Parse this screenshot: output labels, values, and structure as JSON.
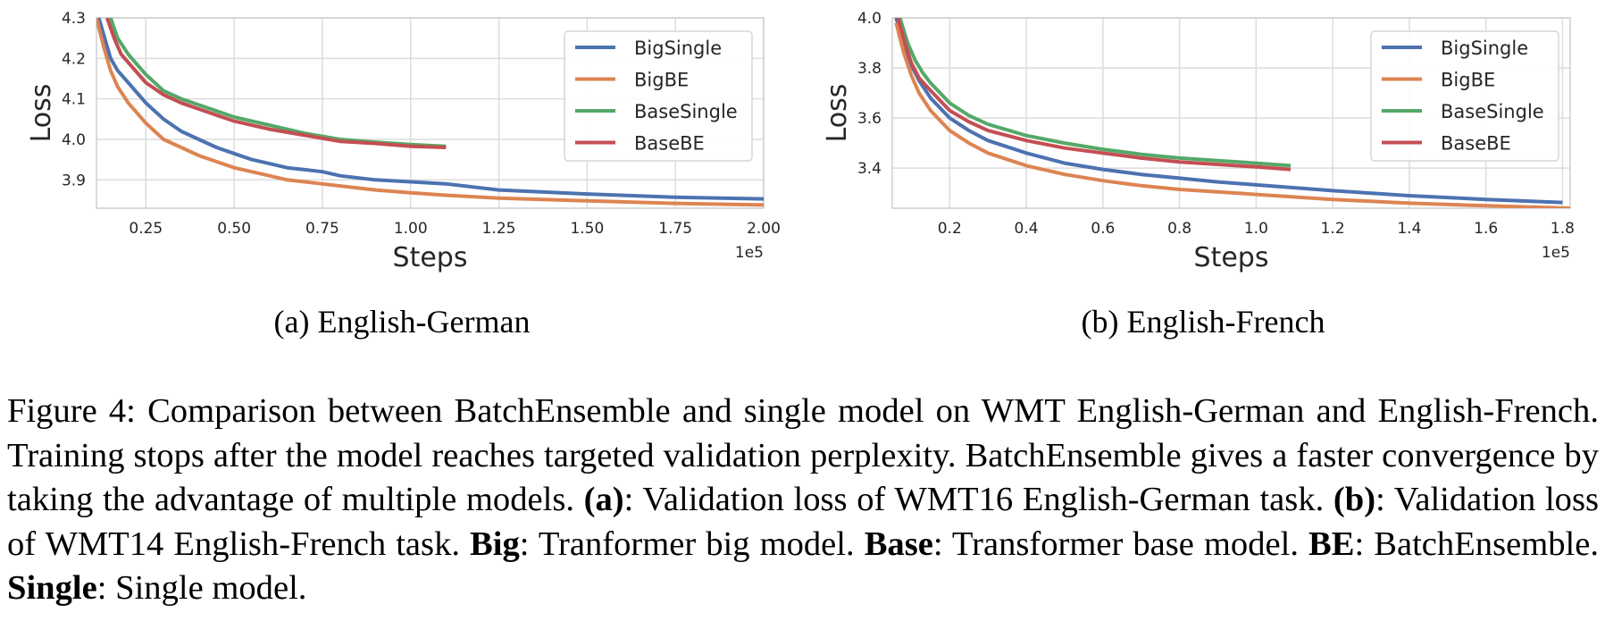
{
  "chart_data": [
    {
      "type": "line",
      "xlabel": "Steps",
      "ylabel": "Loss",
      "x_offset_label": "1e5",
      "xlim": [
        0.11,
        2.0
      ],
      "ylim": [
        3.83,
        4.3
      ],
      "xticks": [
        0.25,
        0.5,
        0.75,
        1.0,
        1.25,
        1.5,
        1.75,
        2.0
      ],
      "xtick_labels": [
        "0.25",
        "0.50",
        "0.75",
        "1.00",
        "1.25",
        "1.50",
        "1.75",
        "2.00"
      ],
      "yticks": [
        3.9,
        4.0,
        4.1,
        4.2,
        4.3
      ],
      "ytick_labels": [
        "3.9",
        "4.0",
        "4.1",
        "4.2",
        "4.3"
      ],
      "grid": true,
      "legend_position": "top-right",
      "caption": "(a) English-German",
      "series": [
        {
          "name": "BigSingle",
          "color": "#4c72b0",
          "x": [
            0.11,
            0.13,
            0.15,
            0.17,
            0.2,
            0.25,
            0.3,
            0.35,
            0.4,
            0.45,
            0.5,
            0.55,
            0.6,
            0.65,
            0.7,
            0.75,
            0.8,
            0.9,
            1.0,
            1.1,
            1.25,
            1.5,
            1.75,
            2.0
          ],
          "y": [
            4.32,
            4.26,
            4.2,
            4.17,
            4.14,
            4.09,
            4.05,
            4.02,
            4.0,
            3.98,
            3.965,
            3.95,
            3.94,
            3.93,
            3.925,
            3.92,
            3.91,
            3.9,
            3.895,
            3.89,
            3.875,
            3.865,
            3.857,
            3.853
          ]
        },
        {
          "name": "BigBE",
          "color": "#dd8452",
          "x": [
            0.11,
            0.13,
            0.15,
            0.17,
            0.2,
            0.25,
            0.3,
            0.35,
            0.4,
            0.45,
            0.5,
            0.55,
            0.6,
            0.65,
            0.7,
            0.75,
            0.8,
            0.9,
            1.0,
            1.1,
            1.25,
            1.5,
            1.75,
            2.0
          ],
          "y": [
            4.3,
            4.23,
            4.17,
            4.13,
            4.09,
            4.04,
            4.0,
            3.98,
            3.96,
            3.945,
            3.93,
            3.92,
            3.91,
            3.9,
            3.895,
            3.89,
            3.885,
            3.875,
            3.868,
            3.862,
            3.855,
            3.848,
            3.842,
            3.838
          ]
        },
        {
          "name": "BaseSingle",
          "color": "#55a868",
          "x": [
            0.15,
            0.17,
            0.2,
            0.25,
            0.3,
            0.35,
            0.4,
            0.45,
            0.5,
            0.6,
            0.7,
            0.8,
            0.9,
            1.0,
            1.1
          ],
          "y": [
            4.3,
            4.25,
            4.21,
            4.16,
            4.12,
            4.1,
            4.085,
            4.07,
            4.055,
            4.035,
            4.015,
            4.0,
            3.993,
            3.987,
            3.983
          ]
        },
        {
          "name": "BaseBE",
          "color": "#c44e52",
          "x": [
            0.14,
            0.16,
            0.18,
            0.2,
            0.25,
            0.3,
            0.35,
            0.4,
            0.45,
            0.5,
            0.6,
            0.7,
            0.8,
            0.9,
            1.0,
            1.1
          ],
          "y": [
            4.3,
            4.25,
            4.21,
            4.19,
            4.14,
            4.11,
            4.09,
            4.075,
            4.06,
            4.045,
            4.025,
            4.01,
            3.995,
            3.99,
            3.983,
            3.98
          ]
        }
      ]
    },
    {
      "type": "line",
      "xlabel": "Steps",
      "ylabel": "Loss",
      "x_offset_label": "1e5",
      "xlim": [
        0.05,
        1.82
      ],
      "ylim": [
        3.24,
        4.0
      ],
      "xticks": [
        0.2,
        0.4,
        0.6,
        0.8,
        1.0,
        1.2,
        1.4,
        1.6,
        1.8
      ],
      "xtick_labels": [
        "0.2",
        "0.4",
        "0.6",
        "0.8",
        "1.0",
        "1.2",
        "1.4",
        "1.6",
        "1.8"
      ],
      "yticks": [
        3.4,
        3.6,
        3.8,
        4.0
      ],
      "ytick_labels": [
        "3.4",
        "3.6",
        "3.8",
        "4.0"
      ],
      "grid": true,
      "legend_position": "top-right",
      "caption": "(b) English-French",
      "series": [
        {
          "name": "BigSingle",
          "color": "#4c72b0",
          "x": [
            0.06,
            0.08,
            0.1,
            0.12,
            0.15,
            0.2,
            0.25,
            0.3,
            0.4,
            0.5,
            0.6,
            0.7,
            0.8,
            0.9,
            1.0,
            1.2,
            1.4,
            1.6,
            1.8
          ],
          "y": [
            4.0,
            3.9,
            3.81,
            3.75,
            3.68,
            3.6,
            3.55,
            3.51,
            3.46,
            3.42,
            3.395,
            3.375,
            3.36,
            3.345,
            3.333,
            3.31,
            3.29,
            3.275,
            3.263
          ]
        },
        {
          "name": "BigBE",
          "color": "#dd8452",
          "x": [
            0.06,
            0.08,
            0.1,
            0.12,
            0.15,
            0.2,
            0.25,
            0.3,
            0.4,
            0.5,
            0.6,
            0.7,
            0.8,
            0.9,
            1.0,
            1.2,
            1.4,
            1.6,
            1.82
          ],
          "y": [
            3.98,
            3.86,
            3.77,
            3.7,
            3.63,
            3.55,
            3.5,
            3.46,
            3.41,
            3.375,
            3.35,
            3.33,
            3.315,
            3.305,
            3.295,
            3.275,
            3.26,
            3.25,
            3.24
          ]
        },
        {
          "name": "BaseSingle",
          "color": "#55a868",
          "x": [
            0.07,
            0.09,
            0.11,
            0.13,
            0.15,
            0.2,
            0.25,
            0.3,
            0.4,
            0.5,
            0.6,
            0.7,
            0.8,
            0.9,
            1.0,
            1.09
          ],
          "y": [
            4.0,
            3.9,
            3.83,
            3.78,
            3.74,
            3.66,
            3.61,
            3.575,
            3.53,
            3.5,
            3.475,
            3.455,
            3.44,
            3.43,
            3.42,
            3.41
          ]
        },
        {
          "name": "BaseBE",
          "color": "#c44e52",
          "x": [
            0.065,
            0.085,
            0.1,
            0.12,
            0.15,
            0.2,
            0.25,
            0.3,
            0.4,
            0.5,
            0.6,
            0.7,
            0.8,
            0.9,
            1.0,
            1.09
          ],
          "y": [
            4.0,
            3.89,
            3.82,
            3.76,
            3.71,
            3.63,
            3.585,
            3.55,
            3.51,
            3.48,
            3.46,
            3.44,
            3.425,
            3.415,
            3.405,
            3.395
          ]
        }
      ]
    }
  ],
  "caption": {
    "prefix": "Figure 4: Comparison between BatchEnsemble and single model on WMT English-German and English-French. Training stops after the model reaches targeted validation perplexity. BatchEnsemble gives a faster convergence by taking the advantage of multiple models. ",
    "a_label": "(a)",
    "a_text": ": Validation loss of WMT16 English-German task. ",
    "b_label": "(b)",
    "b_text": ": Validation loss of WMT14 English-French task. ",
    "big_label": "Big",
    "big_text": ": Tranformer big model. ",
    "base_label": "Base",
    "base_text": ": Transformer base model. ",
    "be_label": "BE",
    "be_text": ": BatchEnsemble. ",
    "single_label": "Single",
    "single_text": ": Single model."
  }
}
